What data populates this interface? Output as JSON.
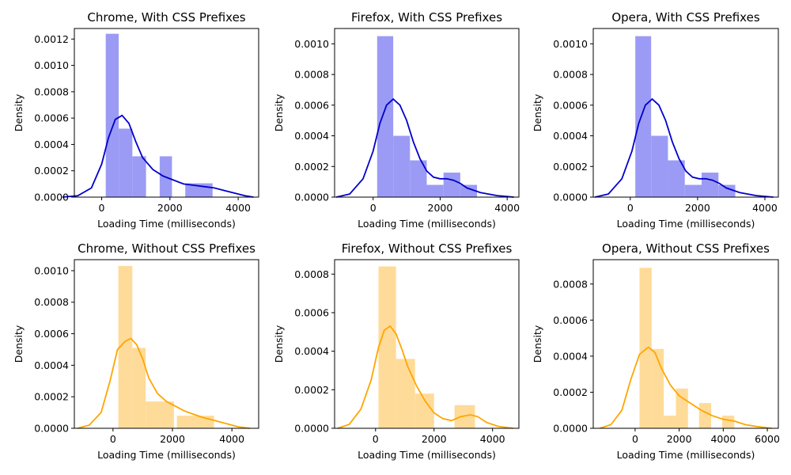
{
  "charts": [
    {
      "title": "Chrome, With CSS Prefixes",
      "xlabel": "Loading Time (milliseconds)",
      "ylabel": "Density",
      "xlim": [
        -800,
        4600
      ],
      "ylim": [
        0,
        0.00128
      ],
      "xticks": [
        0,
        2000,
        4000
      ],
      "yticks": [
        0.0,
        0.0002,
        0.0004,
        0.0006,
        0.0008,
        0.001,
        0.0012
      ],
      "ytick_labels": [
        "0.0000",
        "0.0002",
        "0.0004",
        "0.0006",
        "0.0008",
        "0.0010",
        "0.0012"
      ],
      "color_line": "#0000cc",
      "color_bar": "#9b9bf5",
      "bars": [
        {
          "x0": 120,
          "x1": 500,
          "h": 0.00124
        },
        {
          "x0": 500,
          "x1": 900,
          "h": 0.00052
        },
        {
          "x0": 900,
          "x1": 1300,
          "h": 0.00031
        },
        {
          "x0": 1700,
          "x1": 2060,
          "h": 0.00031
        },
        {
          "x0": 2450,
          "x1": 3250,
          "h": 0.000105
        }
      ],
      "kde": [
        [
          -1150,
          0.0
        ],
        [
          -700,
          1e-05
        ],
        [
          -300,
          7e-05
        ],
        [
          0,
          0.00025
        ],
        [
          200,
          0.00045
        ],
        [
          400,
          0.00059
        ],
        [
          600,
          0.00062
        ],
        [
          800,
          0.00056
        ],
        [
          1000,
          0.00042
        ],
        [
          1200,
          0.0003
        ],
        [
          1500,
          0.00021
        ],
        [
          1800,
          0.00016
        ],
        [
          2100,
          0.00013
        ],
        [
          2400,
          0.0001
        ],
        [
          2700,
          9e-05
        ],
        [
          3000,
          8e-05
        ],
        [
          3300,
          7e-05
        ],
        [
          3600,
          5e-05
        ],
        [
          3900,
          3e-05
        ],
        [
          4200,
          1e-05
        ],
        [
          4450,
          0.0
        ]
      ]
    },
    {
      "title": "Firefox, With CSS Prefixes",
      "xlabel": "Loading Time (milliseconds)",
      "ylabel": "Density",
      "xlim": [
        -1150,
        4350
      ],
      "ylim": [
        0,
        0.0011
      ],
      "xticks": [
        0,
        2000,
        4000
      ],
      "yticks": [
        0.0,
        0.0002,
        0.0004,
        0.0006,
        0.0008,
        0.001
      ],
      "ytick_labels": [
        "0.0000",
        "0.0002",
        "0.0004",
        "0.0006",
        "0.0008",
        "0.0010"
      ],
      "color_line": "#0000cc",
      "color_bar": "#9b9bf5",
      "bars": [
        {
          "x0": 120,
          "x1": 600,
          "h": 0.00105
        },
        {
          "x0": 600,
          "x1": 1100,
          "h": 0.0004
        },
        {
          "x0": 1100,
          "x1": 1600,
          "h": 0.00024
        },
        {
          "x0": 1600,
          "x1": 2100,
          "h": 8e-05
        },
        {
          "x0": 2100,
          "x1": 2600,
          "h": 0.00016
        },
        {
          "x0": 2600,
          "x1": 3100,
          "h": 8e-05
        }
      ],
      "kde": [
        [
          -1100,
          0.0
        ],
        [
          -700,
          2e-05
        ],
        [
          -300,
          0.00012
        ],
        [
          0,
          0.0003
        ],
        [
          200,
          0.00048
        ],
        [
          400,
          0.0006
        ],
        [
          600,
          0.00064
        ],
        [
          800,
          0.0006
        ],
        [
          1000,
          0.0005
        ],
        [
          1200,
          0.00036
        ],
        [
          1400,
          0.00025
        ],
        [
          1600,
          0.00017
        ],
        [
          1800,
          0.00013
        ],
        [
          2000,
          0.00012
        ],
        [
          2200,
          0.00012
        ],
        [
          2400,
          0.00011
        ],
        [
          2600,
          9e-05
        ],
        [
          2800,
          6e-05
        ],
        [
          3200,
          3e-05
        ],
        [
          3700,
          1e-05
        ],
        [
          4200,
          0.0
        ]
      ]
    },
    {
      "title": "Opera, With CSS Prefixes",
      "xlabel": "Loading Time (milliseconds)",
      "ylabel": "Density",
      "xlim": [
        -1100,
        4400
      ],
      "ylim": [
        0,
        0.0011
      ],
      "xticks": [
        0,
        2000,
        4000
      ],
      "yticks": [
        0.0,
        0.0002,
        0.0004,
        0.0006,
        0.0008,
        0.001
      ],
      "ytick_labels": [
        "0.0000",
        "0.0002",
        "0.0004",
        "0.0006",
        "0.0008",
        "0.0010"
      ],
      "color_line": "#0000cc",
      "color_bar": "#9b9bf5",
      "bars": [
        {
          "x0": 150,
          "x1": 620,
          "h": 0.00105
        },
        {
          "x0": 620,
          "x1": 1120,
          "h": 0.0004
        },
        {
          "x0": 1120,
          "x1": 1620,
          "h": 0.00024
        },
        {
          "x0": 1620,
          "x1": 2120,
          "h": 8e-05
        },
        {
          "x0": 2120,
          "x1": 2620,
          "h": 0.00016
        },
        {
          "x0": 2620,
          "x1": 3120,
          "h": 8e-05
        }
      ],
      "kde": [
        [
          -1050,
          0.0
        ],
        [
          -650,
          2e-05
        ],
        [
          -250,
          0.00012
        ],
        [
          50,
          0.0003
        ],
        [
          250,
          0.00048
        ],
        [
          450,
          0.0006
        ],
        [
          650,
          0.00064
        ],
        [
          850,
          0.0006
        ],
        [
          1050,
          0.0005
        ],
        [
          1250,
          0.00036
        ],
        [
          1450,
          0.00025
        ],
        [
          1650,
          0.00017
        ],
        [
          1850,
          0.00013
        ],
        [
          2050,
          0.00012
        ],
        [
          2250,
          0.00012
        ],
        [
          2450,
          0.00011
        ],
        [
          2650,
          9e-05
        ],
        [
          2850,
          6e-05
        ],
        [
          3250,
          3e-05
        ],
        [
          3750,
          1e-05
        ],
        [
          4250,
          0.0
        ]
      ]
    },
    {
      "title": "Chrome, Without CSS Prefixes",
      "xlabel": "Loading Time (milliseconds)",
      "ylabel": "Density",
      "xlim": [
        -1300,
        4900
      ],
      "ylim": [
        0,
        0.00107
      ],
      "xticks": [
        0,
        2000,
        4000
      ],
      "yticks": [
        0.0,
        0.0002,
        0.0004,
        0.0006,
        0.0008,
        0.001
      ],
      "ytick_labels": [
        "0.0000",
        "0.0002",
        "0.0004",
        "0.0006",
        "0.0008",
        "0.0010"
      ],
      "color_line": "#ffa500",
      "color_bar": "#ffdb99",
      "bars": [
        {
          "x0": 180,
          "x1": 650,
          "h": 0.00103
        },
        {
          "x0": 650,
          "x1": 1100,
          "h": 0.00051
        },
        {
          "x0": 1100,
          "x1": 2050,
          "h": 0.00017
        },
        {
          "x0": 2050,
          "x1": 2150,
          "h": 0.0
        },
        {
          "x0": 2150,
          "x1": 3400,
          "h": 8e-05
        }
      ],
      "kde": [
        [
          -1200,
          0.0
        ],
        [
          -800,
          2e-05
        ],
        [
          -400,
          0.0001
        ],
        [
          -100,
          0.0003
        ],
        [
          150,
          0.0005
        ],
        [
          400,
          0.00055
        ],
        [
          600,
          0.00057
        ],
        [
          800,
          0.00053
        ],
        [
          1000,
          0.00044
        ],
        [
          1200,
          0.00032
        ],
        [
          1500,
          0.00022
        ],
        [
          1800,
          0.00017
        ],
        [
          2100,
          0.00014
        ],
        [
          2400,
          0.00011
        ],
        [
          2700,
          9e-05
        ],
        [
          3000,
          7e-05
        ],
        [
          3400,
          5e-05
        ],
        [
          3800,
          3e-05
        ],
        [
          4200,
          1e-05
        ],
        [
          4600,
          0.0
        ]
      ]
    },
    {
      "title": "Firefox, Without CSS Prefixes",
      "xlabel": "Loading Time (milliseconds)",
      "ylabel": "Density",
      "xlim": [
        -1400,
        4900
      ],
      "ylim": [
        0,
        0.000875
      ],
      "xticks": [
        0,
        2000,
        4000
      ],
      "yticks": [
        0.0,
        0.0002,
        0.0004,
        0.0006,
        0.0008
      ],
      "ytick_labels": [
        "0.0000",
        "0.0002",
        "0.0004",
        "0.0006",
        "0.0008"
      ],
      "color_line": "#ffa500",
      "color_bar": "#ffdb99",
      "bars": [
        {
          "x0": 100,
          "x1": 700,
          "h": 0.00084
        },
        {
          "x0": 700,
          "x1": 1350,
          "h": 0.00036
        },
        {
          "x0": 1350,
          "x1": 2000,
          "h": 0.00018
        },
        {
          "x0": 2700,
          "x1": 3400,
          "h": 0.00012
        }
      ],
      "kde": [
        [
          -1300,
          0.0
        ],
        [
          -900,
          2e-05
        ],
        [
          -500,
          0.0001
        ],
        [
          -150,
          0.00025
        ],
        [
          100,
          0.00042
        ],
        [
          300,
          0.00051
        ],
        [
          500,
          0.00053
        ],
        [
          700,
          0.00049
        ],
        [
          900,
          0.00041
        ],
        [
          1100,
          0.00032
        ],
        [
          1400,
          0.00022
        ],
        [
          1700,
          0.00014
        ],
        [
          2000,
          8e-05
        ],
        [
          2300,
          5e-05
        ],
        [
          2600,
          4e-05
        ],
        [
          2900,
          6e-05
        ],
        [
          3250,
          7e-05
        ],
        [
          3500,
          6e-05
        ],
        [
          3800,
          3e-05
        ],
        [
          4200,
          1e-05
        ],
        [
          4700,
          0.0
        ]
      ]
    },
    {
      "title": "Opera, Without CSS Prefixes",
      "xlabel": "Loading Time (milliseconds)",
      "ylabel": "Density",
      "xlim": [
        -1900,
        6500
      ],
      "ylim": [
        0,
        0.000935
      ],
      "xticks": [
        0,
        2000,
        4000,
        6000
      ],
      "yticks": [
        0.0,
        0.0002,
        0.0004,
        0.0006,
        0.0008
      ],
      "ytick_labels": [
        "0.0000",
        "0.0002",
        "0.0004",
        "0.0006",
        "0.0008"
      ],
      "color_line": "#ffa500",
      "color_bar": "#ffdb99",
      "bars": [
        {
          "x0": 200,
          "x1": 750,
          "h": 0.00089
        },
        {
          "x0": 750,
          "x1": 1300,
          "h": 0.00044
        },
        {
          "x0": 1300,
          "x1": 1850,
          "h": 7e-05
        },
        {
          "x0": 1850,
          "x1": 2400,
          "h": 0.00022
        },
        {
          "x0": 2900,
          "x1": 3450,
          "h": 0.00014
        },
        {
          "x0": 3950,
          "x1": 4500,
          "h": 7e-05
        }
      ],
      "kde": [
        [
          -1600,
          0.0
        ],
        [
          -1100,
          2e-05
        ],
        [
          -600,
          0.0001
        ],
        [
          -200,
          0.00027
        ],
        [
          200,
          0.00041
        ],
        [
          600,
          0.00045
        ],
        [
          900,
          0.00042
        ],
        [
          1200,
          0.00033
        ],
        [
          1600,
          0.00024
        ],
        [
          2000,
          0.00018
        ],
        [
          2500,
          0.00014
        ],
        [
          3000,
          0.0001
        ],
        [
          3500,
          7e-05
        ],
        [
          4000,
          5e-05
        ],
        [
          4500,
          4e-05
        ],
        [
          5000,
          2e-05
        ],
        [
          5500,
          1e-05
        ],
        [
          6200,
          0.0
        ]
      ]
    }
  ]
}
